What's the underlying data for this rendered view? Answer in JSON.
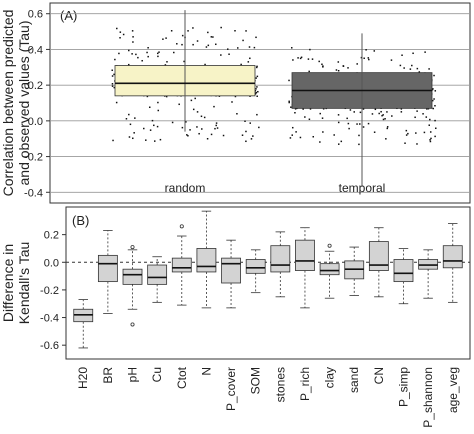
{
  "chart_data": [
    {
      "type": "box",
      "panel_label": "(A)",
      "ylabel_line1": "Correlation between predicted",
      "ylabel_line2": "and observed values (Tau)",
      "ylim": [
        -0.46,
        0.66
      ],
      "yticks": [
        -0.4,
        -0.2,
        0.0,
        0.2,
        0.4,
        0.6
      ],
      "grid": "horizontal",
      "categories": [
        "random",
        "temporal"
      ],
      "boxes": [
        {
          "name": "random",
          "q1": 0.14,
          "median": 0.21,
          "q3": 0.31,
          "whisker_low": -0.06,
          "whisker_high": 0.62,
          "fill": "#f7f3c7",
          "jitter_low": -0.12,
          "jitter_high": 0.53
        },
        {
          "name": "temporal",
          "q1": 0.07,
          "median": 0.17,
          "q3": 0.27,
          "whisker_low": -0.37,
          "whisker_high": 0.49,
          "fill": "#666666",
          "jitter_low": -0.13,
          "jitter_high": 0.42
        }
      ]
    },
    {
      "type": "box",
      "panel_label": "(B)",
      "ylabel_line1": "Difference in",
      "ylabel_line2": "Kendall's Tau",
      "ylim": [
        -0.7,
        0.4
      ],
      "yticks": [
        -0.6,
        -0.4,
        -0.2,
        0.0,
        0.2
      ],
      "reference_line": 0.0,
      "categories": [
        "H20",
        "BR",
        "pH",
        "Cu",
        "Ctot",
        "N",
        "P_cover",
        "SOM",
        "stones",
        "P_rich",
        "clay",
        "sand",
        "CN",
        "P_simp",
        "P_shannon",
        "age_veg"
      ],
      "boxes": [
        {
          "name": "H20",
          "q1": -0.43,
          "median": -0.38,
          "q3": -0.34,
          "whisker_low": -0.62,
          "whisker_high": -0.27,
          "outliers": []
        },
        {
          "name": "BR",
          "q1": -0.14,
          "median": -0.01,
          "q3": 0.05,
          "whisker_low": -0.37,
          "whisker_high": 0.23,
          "outliers": []
        },
        {
          "name": "pH",
          "q1": -0.16,
          "median": -0.09,
          "q3": -0.05,
          "whisker_low": -0.34,
          "whisker_high": 0.09,
          "outliers": [
            -0.45,
            0.11
          ]
        },
        {
          "name": "Cu",
          "q1": -0.16,
          "median": -0.11,
          "q3": -0.02,
          "whisker_low": -0.29,
          "whisker_high": 0.04,
          "outliers": []
        },
        {
          "name": "Ctot",
          "q1": -0.07,
          "median": -0.04,
          "q3": 0.03,
          "whisker_low": -0.31,
          "whisker_high": 0.19,
          "outliers": [
            0.26
          ]
        },
        {
          "name": "N",
          "q1": -0.07,
          "median": -0.03,
          "q3": 0.1,
          "whisker_low": -0.33,
          "whisker_high": 0.37,
          "outliers": []
        },
        {
          "name": "P_cover",
          "q1": -0.15,
          "median": -0.01,
          "q3": 0.03,
          "whisker_low": -0.33,
          "whisker_high": 0.16,
          "outliers": []
        },
        {
          "name": "SOM",
          "q1": -0.08,
          "median": -0.04,
          "q3": 0.02,
          "whisker_low": -0.22,
          "whisker_high": 0.09,
          "outliers": []
        },
        {
          "name": "stones",
          "q1": -0.07,
          "median": -0.02,
          "q3": 0.12,
          "whisker_low": -0.25,
          "whisker_high": 0.22,
          "outliers": []
        },
        {
          "name": "P_rich",
          "q1": -0.06,
          "median": 0.01,
          "q3": 0.16,
          "whisker_low": -0.33,
          "whisker_high": 0.25,
          "outliers": []
        },
        {
          "name": "clay",
          "q1": -0.09,
          "median": -0.06,
          "q3": -0.01,
          "whisker_low": -0.26,
          "whisker_high": 0.08,
          "outliers": [
            0.12
          ]
        },
        {
          "name": "sand",
          "q1": -0.12,
          "median": -0.05,
          "q3": 0.01,
          "whisker_low": -0.24,
          "whisker_high": 0.11,
          "outliers": []
        },
        {
          "name": "CN",
          "q1": -0.06,
          "median": -0.02,
          "q3": 0.15,
          "whisker_low": -0.25,
          "whisker_high": 0.25,
          "outliers": []
        },
        {
          "name": "P_simp",
          "q1": -0.14,
          "median": -0.08,
          "q3": 0.02,
          "whisker_low": -0.3,
          "whisker_high": 0.1,
          "outliers": []
        },
        {
          "name": "P_shannon",
          "q1": -0.05,
          "median": -0.02,
          "q3": 0.02,
          "whisker_low": -0.26,
          "whisker_high": 0.09,
          "outliers": []
        },
        {
          "name": "age_veg",
          "q1": -0.04,
          "median": 0.01,
          "q3": 0.12,
          "whisker_low": -0.29,
          "whisker_high": 0.28,
          "outliers": []
        }
      ]
    }
  ]
}
